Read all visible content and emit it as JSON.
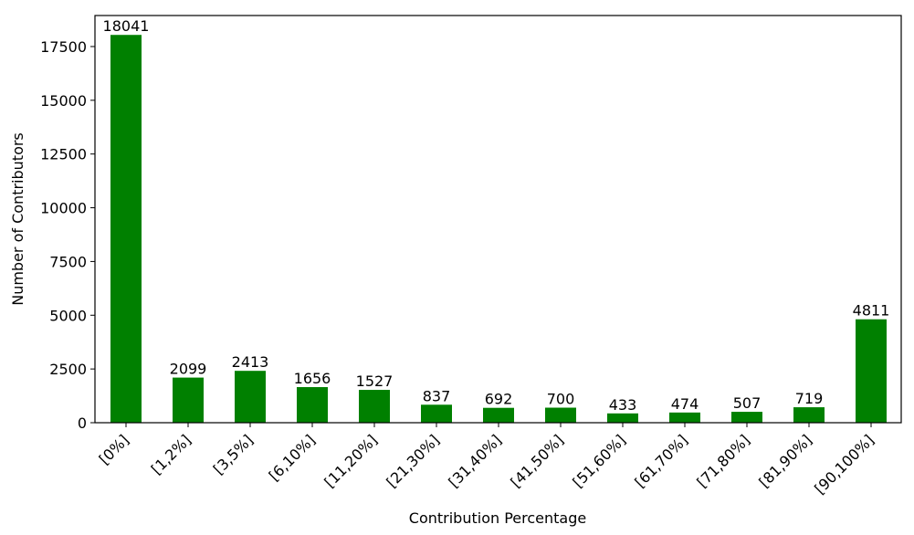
{
  "chart_data": {
    "type": "bar",
    "categories": [
      "[0%]",
      "[1,2%]",
      "[3,5%]",
      "[6,10%]",
      "[11,20%]",
      "[21,30%]",
      "[31,40%]",
      "[41,50%]",
      "[51,60%]",
      "[61,70%]",
      "[71,80%]",
      "[81,90%]",
      "[90,100%]"
    ],
    "values": [
      18041,
      2099,
      2413,
      1656,
      1527,
      837,
      692,
      700,
      433,
      474,
      507,
      719,
      4811
    ],
    "xlabel": "Contribution Percentage",
    "ylabel": "Number of Contributors",
    "ylim": [
      0,
      18943
    ],
    "yticks": [
      0,
      2500,
      5000,
      7500,
      10000,
      12500,
      15000,
      17500
    ],
    "bar_color": "#008000",
    "grid": false
  }
}
